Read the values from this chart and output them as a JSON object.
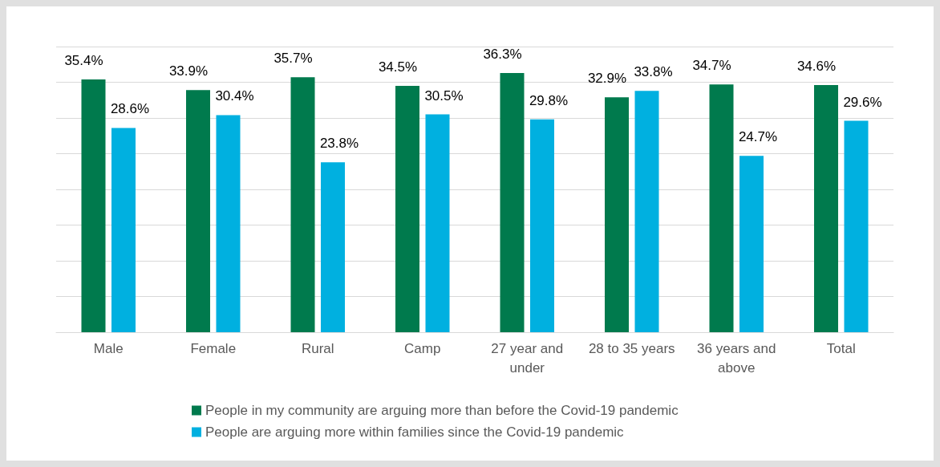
{
  "chart_data": {
    "type": "bar",
    "categories": [
      "Male",
      "Female",
      "Rural",
      "Camp",
      "27 year and under",
      "28 to 35 years",
      "36 years and above",
      "Total"
    ],
    "series": [
      {
        "name": "People in my community are arguing more than before the Covid-19 pandemic",
        "color": "#007a4d",
        "values": [
          35.4,
          33.9,
          35.7,
          34.5,
          36.3,
          32.9,
          34.7,
          34.6
        ],
        "value_labels": [
          "35.4%",
          "33.9%",
          "35.7%",
          "34.5%",
          "36.3%",
          "32.9%",
          "34.7%",
          "34.6%"
        ]
      },
      {
        "name": "People are arguing more within families since the Covid-19 pandemic",
        "color": "#00b0e0",
        "values": [
          28.6,
          30.4,
          23.8,
          30.5,
          29.8,
          33.8,
          24.7,
          29.6
        ],
        "value_labels": [
          "28.6%",
          "30.4%",
          "23.8%",
          "30.5%",
          "29.8%",
          "33.8%",
          "24.7%",
          "29.6%"
        ]
      }
    ],
    "ylim": [
      0,
      40
    ],
    "yticks": [
      0,
      5,
      10,
      15,
      20,
      25,
      30,
      35,
      40
    ],
    "grid": "y",
    "legend": "bottom",
    "tick_labels": "x"
  }
}
